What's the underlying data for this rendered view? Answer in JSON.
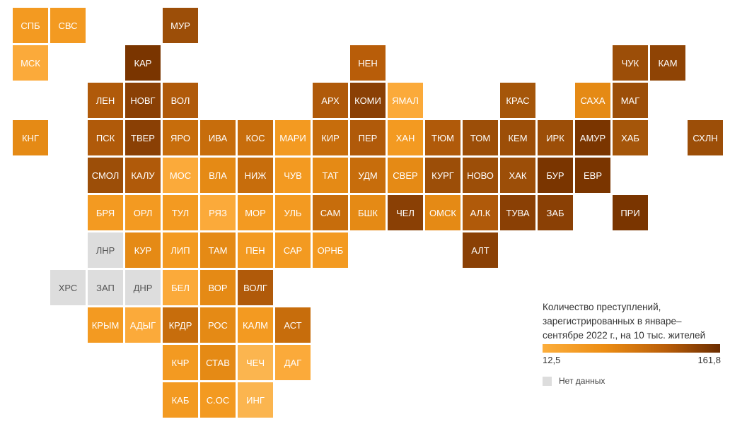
{
  "colors": {
    "nodata": "#dddddd",
    "scale_low": "#fcae3c",
    "scale_mid": "#ec8d14",
    "scale_high": "#6b2d00"
  },
  "legend": {
    "title": "Количество преступлений, зарегистрированных в январе–сентябре 2022 г., на 10 тыс. жителей",
    "min": "12,5",
    "max": "161,8",
    "nodata": "Нет данных"
  },
  "regions": [
    {
      "label": "СПБ",
      "row": 0,
      "col": 0,
      "color": "#f39a21"
    },
    {
      "label": "СВС",
      "row": 0,
      "col": 1,
      "color": "#f39a21"
    },
    {
      "label": "МУР",
      "row": 0,
      "col": 4,
      "color": "#9c4e08"
    },
    {
      "label": "МСК",
      "row": 1,
      "col": 0,
      "color": "#fbaa3a"
    },
    {
      "label": "КАР",
      "row": 1,
      "col": 3,
      "color": "#7a3500"
    },
    {
      "label": "НЕН",
      "row": 1,
      "col": 9,
      "color": "#b85d09"
    },
    {
      "label": "ЧУК",
      "row": 1,
      "col": 16,
      "color": "#9c4e08"
    },
    {
      "label": "КАМ",
      "row": 1,
      "col": 17,
      "color": "#8f4405"
    },
    {
      "label": "ЛЕН",
      "row": 2,
      "col": 2,
      "color": "#b05a0a"
    },
    {
      "label": "НОВГ",
      "row": 2,
      "col": 3,
      "color": "#8a4005"
    },
    {
      "label": "ВОЛ",
      "row": 2,
      "col": 4,
      "color": "#b05a0a"
    },
    {
      "label": "АРХ",
      "row": 2,
      "col": 8,
      "color": "#b05a0a"
    },
    {
      "label": "КОМИ",
      "row": 2,
      "col": 9,
      "color": "#8a4005"
    },
    {
      "label": "ЯМАЛ",
      "row": 2,
      "col": 10,
      "color": "#fbaa3a"
    },
    {
      "label": "КРАС",
      "row": 2,
      "col": 13,
      "color": "#a5560a"
    },
    {
      "label": "САХА",
      "row": 2,
      "col": 15,
      "color": "#e58a15"
    },
    {
      "label": "МАГ",
      "row": 2,
      "col": 16,
      "color": "#9c4e08"
    },
    {
      "label": "КНГ",
      "row": 3,
      "col": 0,
      "color": "#e58a15"
    },
    {
      "label": "ПСК",
      "row": 3,
      "col": 2,
      "color": "#b05a0a"
    },
    {
      "label": "ТВЕР",
      "row": 3,
      "col": 3,
      "color": "#8a4005"
    },
    {
      "label": "ЯРО",
      "row": 3,
      "col": 4,
      "color": "#c76d0c"
    },
    {
      "label": "ИВА",
      "row": 3,
      "col": 5,
      "color": "#c76d0c"
    },
    {
      "label": "КОС",
      "row": 3,
      "col": 6,
      "color": "#c76d0c"
    },
    {
      "label": "МАРИ",
      "row": 3,
      "col": 7,
      "color": "#f39a21"
    },
    {
      "label": "КИР",
      "row": 3,
      "col": 8,
      "color": "#c76d0c"
    },
    {
      "label": "ПЕР",
      "row": 3,
      "col": 9,
      "color": "#b05a0a"
    },
    {
      "label": "ХАН",
      "row": 3,
      "col": 10,
      "color": "#f39a21"
    },
    {
      "label": "ТЮМ",
      "row": 3,
      "col": 11,
      "color": "#b05a0a"
    },
    {
      "label": "ТОМ",
      "row": 3,
      "col": 12,
      "color": "#9c4e08"
    },
    {
      "label": "КЕМ",
      "row": 3,
      "col": 13,
      "color": "#9c4e08"
    },
    {
      "label": "ИРК",
      "row": 3,
      "col": 14,
      "color": "#9c4e08"
    },
    {
      "label": "АМУР",
      "row": 3,
      "col": 15,
      "color": "#7a3500"
    },
    {
      "label": "ХАБ",
      "row": 3,
      "col": 16,
      "color": "#a5560a"
    },
    {
      "label": "СХЛН",
      "row": 3,
      "col": 18,
      "color": "#9c4e08"
    },
    {
      "label": "СМОЛ",
      "row": 4,
      "col": 2,
      "color": "#9c4e08"
    },
    {
      "label": "КАЛУ",
      "row": 4,
      "col": 3,
      "color": "#b05a0a"
    },
    {
      "label": "МОС",
      "row": 4,
      "col": 4,
      "color": "#fbaa3a"
    },
    {
      "label": "ВЛА",
      "row": 4,
      "col": 5,
      "color": "#e58a15"
    },
    {
      "label": "НИЖ",
      "row": 4,
      "col": 6,
      "color": "#c76d0c"
    },
    {
      "label": "ЧУВ",
      "row": 4,
      "col": 7,
      "color": "#f39a21"
    },
    {
      "label": "ТАТ",
      "row": 4,
      "col": 8,
      "color": "#e58a15"
    },
    {
      "label": "УДМ",
      "row": 4,
      "col": 9,
      "color": "#c76d0c"
    },
    {
      "label": "СВЕР",
      "row": 4,
      "col": 10,
      "color": "#e58a15"
    },
    {
      "label": "КУРГ",
      "row": 4,
      "col": 11,
      "color": "#9c4e08"
    },
    {
      "label": "НОВО",
      "row": 4,
      "col": 12,
      "color": "#9c4e08"
    },
    {
      "label": "ХАК",
      "row": 4,
      "col": 13,
      "color": "#9c4e08"
    },
    {
      "label": "БУР",
      "row": 4,
      "col": 14,
      "color": "#7a3500"
    },
    {
      "label": "ЕВР",
      "row": 4,
      "col": 15,
      "color": "#7a3500"
    },
    {
      "label": "БРЯ",
      "row": 5,
      "col": 2,
      "color": "#f39a21"
    },
    {
      "label": "ОРЛ",
      "row": 5,
      "col": 3,
      "color": "#f39a21"
    },
    {
      "label": "ТУЛ",
      "row": 5,
      "col": 4,
      "color": "#f39a21"
    },
    {
      "label": "РЯЗ",
      "row": 5,
      "col": 5,
      "color": "#fbaa3a"
    },
    {
      "label": "МОР",
      "row": 5,
      "col": 6,
      "color": "#f39a21"
    },
    {
      "label": "УЛЬ",
      "row": 5,
      "col": 7,
      "color": "#f39a21"
    },
    {
      "label": "САМ",
      "row": 5,
      "col": 8,
      "color": "#c76d0c"
    },
    {
      "label": "БШК",
      "row": 5,
      "col": 9,
      "color": "#e58a15"
    },
    {
      "label": "ЧЕЛ",
      "row": 5,
      "col": 10,
      "color": "#8a4005"
    },
    {
      "label": "ОМСК",
      "row": 5,
      "col": 11,
      "color": "#e58a15"
    },
    {
      "label": "АЛ.К",
      "row": 5,
      "col": 12,
      "color": "#b05a0a"
    },
    {
      "label": "ТУВА",
      "row": 5,
      "col": 13,
      "color": "#8a4005"
    },
    {
      "label": "ЗАБ",
      "row": 5,
      "col": 14,
      "color": "#8a4005"
    },
    {
      "label": "ПРИ",
      "row": 5,
      "col": 16,
      "color": "#7a3500"
    },
    {
      "label": "ЛНР",
      "row": 6,
      "col": 2,
      "color": "#dddddd",
      "nodata": true
    },
    {
      "label": "КУР",
      "row": 6,
      "col": 3,
      "color": "#e58a15"
    },
    {
      "label": "ЛИП",
      "row": 6,
      "col": 4,
      "color": "#f39a21"
    },
    {
      "label": "ТАМ",
      "row": 6,
      "col": 5,
      "color": "#e58a15"
    },
    {
      "label": "ПЕН",
      "row": 6,
      "col": 6,
      "color": "#f39a21"
    },
    {
      "label": "САР",
      "row": 6,
      "col": 7,
      "color": "#f39a21"
    },
    {
      "label": "ОРНБ",
      "row": 6,
      "col": 8,
      "color": "#f39a21"
    },
    {
      "label": "АЛТ",
      "row": 6,
      "col": 12,
      "color": "#8a4005"
    },
    {
      "label": "ХРС",
      "row": 7,
      "col": 1,
      "color": "#dddddd",
      "nodata": true
    },
    {
      "label": "ЗАП",
      "row": 7,
      "col": 2,
      "color": "#dddddd",
      "nodata": true
    },
    {
      "label": "ДНР",
      "row": 7,
      "col": 3,
      "color": "#dddddd",
      "nodata": true
    },
    {
      "label": "БЕЛ",
      "row": 7,
      "col": 4,
      "color": "#fbaa3a"
    },
    {
      "label": "ВОР",
      "row": 7,
      "col": 5,
      "color": "#e58a15"
    },
    {
      "label": "ВОЛГ",
      "row": 7,
      "col": 6,
      "color": "#b05a0a"
    },
    {
      "label": "КРЫМ",
      "row": 8,
      "col": 2,
      "color": "#f39a21"
    },
    {
      "label": "АДЫГ",
      "row": 8,
      "col": 3,
      "color": "#fbaa3a"
    },
    {
      "label": "КРДР",
      "row": 8,
      "col": 4,
      "color": "#c76d0c"
    },
    {
      "label": "РОС",
      "row": 8,
      "col": 5,
      "color": "#e58a15"
    },
    {
      "label": "КАЛМ",
      "row": 8,
      "col": 6,
      "color": "#f39a21"
    },
    {
      "label": "АСТ",
      "row": 8,
      "col": 7,
      "color": "#c76d0c"
    },
    {
      "label": "КЧР",
      "row": 9,
      "col": 4,
      "color": "#f39a21"
    },
    {
      "label": "СТАВ",
      "row": 9,
      "col": 5,
      "color": "#e58a15"
    },
    {
      "label": "ЧЕЧ",
      "row": 9,
      "col": 6,
      "color": "#fbb54f"
    },
    {
      "label": "ДАГ",
      "row": 9,
      "col": 7,
      "color": "#fbaa3a"
    },
    {
      "label": "КАБ",
      "row": 10,
      "col": 4,
      "color": "#f39a21"
    },
    {
      "label": "С.ОС",
      "row": 10,
      "col": 5,
      "color": "#f39a21"
    },
    {
      "label": "ИНГ",
      "row": 10,
      "col": 6,
      "color": "#fbb54f"
    }
  ]
}
